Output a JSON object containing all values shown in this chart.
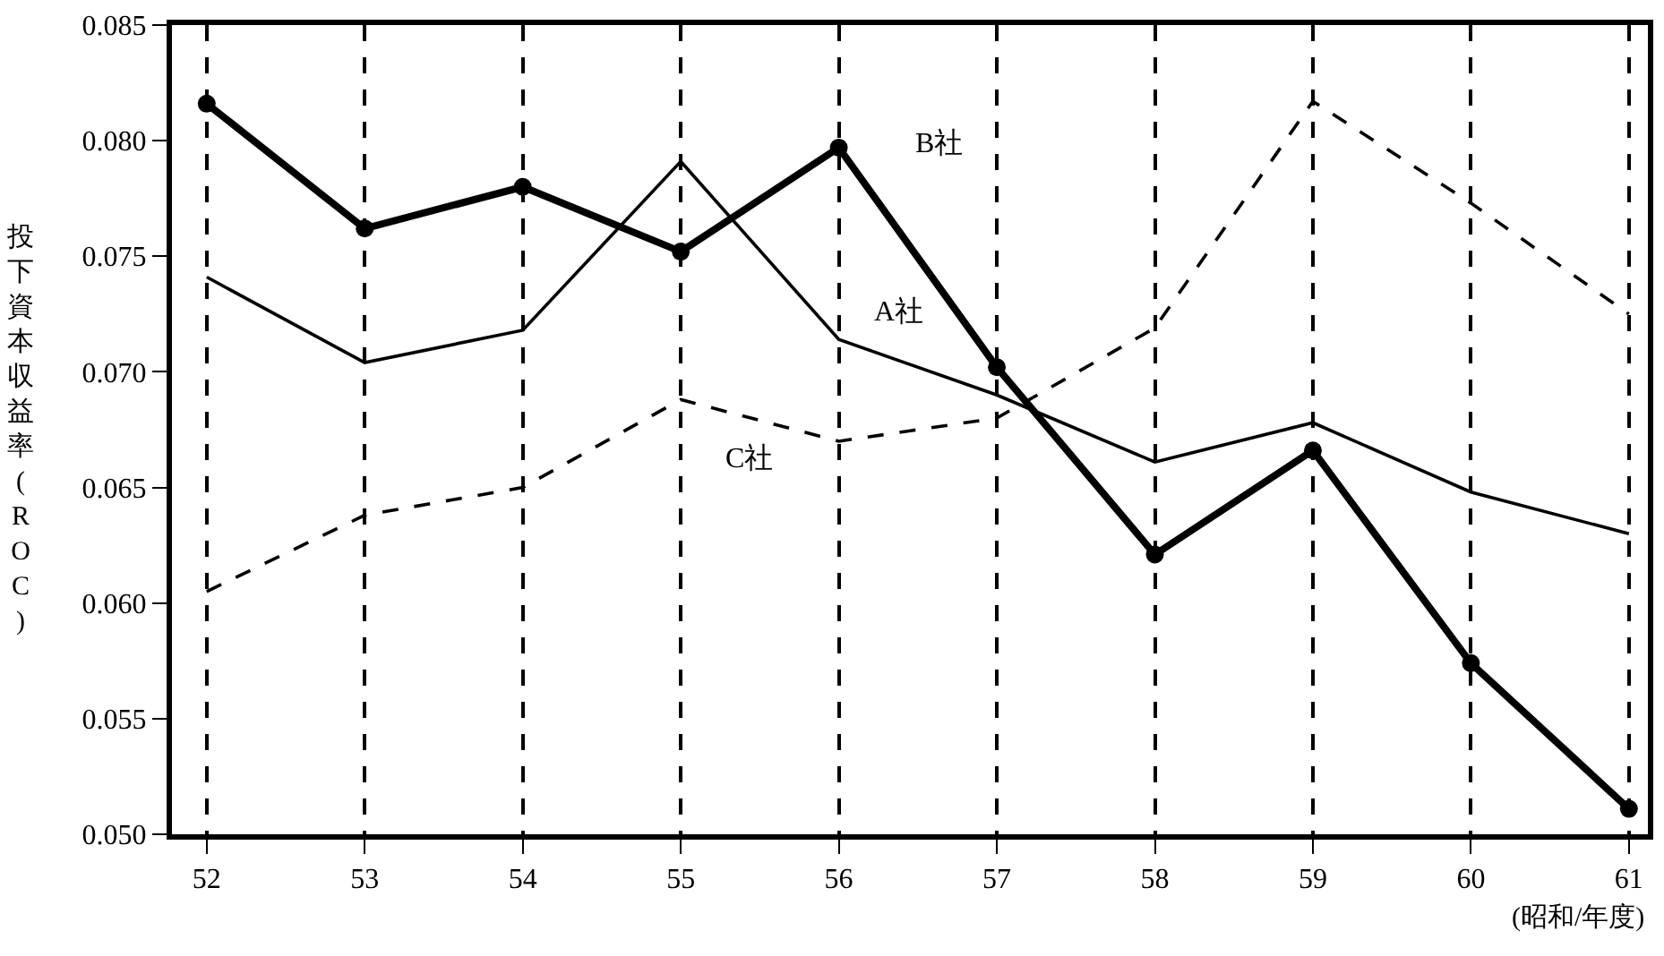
{
  "chart_data": {
    "type": "line",
    "ylabel": "投下資本収益率(ROC)",
    "xlabel": "(昭和/年度)",
    "x": [
      52,
      53,
      54,
      55,
      56,
      57,
      58,
      59,
      60,
      61
    ],
    "xlim": [
      51.78,
      61.12
    ],
    "xticks": [
      52,
      53,
      54,
      55,
      56,
      57,
      58,
      59,
      60,
      61
    ],
    "ylim": [
      0.05,
      0.085
    ],
    "yticks": [
      {
        "value": 0.05,
        "label": "0.050"
      },
      {
        "value": 0.055,
        "label": "0.055"
      },
      {
        "value": 0.06,
        "label": "0.060"
      },
      {
        "value": 0.065,
        "label": "0.065"
      },
      {
        "value": 0.07,
        "label": "0.070"
      },
      {
        "value": 0.075,
        "label": "0.075"
      },
      {
        "value": 0.08,
        "label": "0.080"
      },
      {
        "value": 0.085,
        "label": "0.085"
      }
    ],
    "grid": "x",
    "series": [
      {
        "name": "A社",
        "color": "#000000",
        "line_style": "solid",
        "marker": "none",
        "values": [
          0.0741,
          0.0704,
          0.0718,
          0.0791,
          0.0714,
          0.069,
          0.0661,
          0.0678,
          0.0648,
          0.063
        ]
      },
      {
        "name": "B社",
        "color": "#000000",
        "line_style": "solid",
        "marker": "circle",
        "values": [
          0.0816,
          0.0762,
          0.078,
          0.0752,
          0.0797,
          0.0702,
          0.0621,
          0.0666,
          0.0574,
          0.0511
        ]
      },
      {
        "name": "C社",
        "color": "#000000",
        "line_style": "dashed",
        "marker": "none",
        "values": [
          0.0605,
          0.0638,
          0.065,
          0.0688,
          0.067,
          0.068,
          0.0719,
          0.0817,
          0.0773,
          0.0725
        ]
      }
    ]
  }
}
